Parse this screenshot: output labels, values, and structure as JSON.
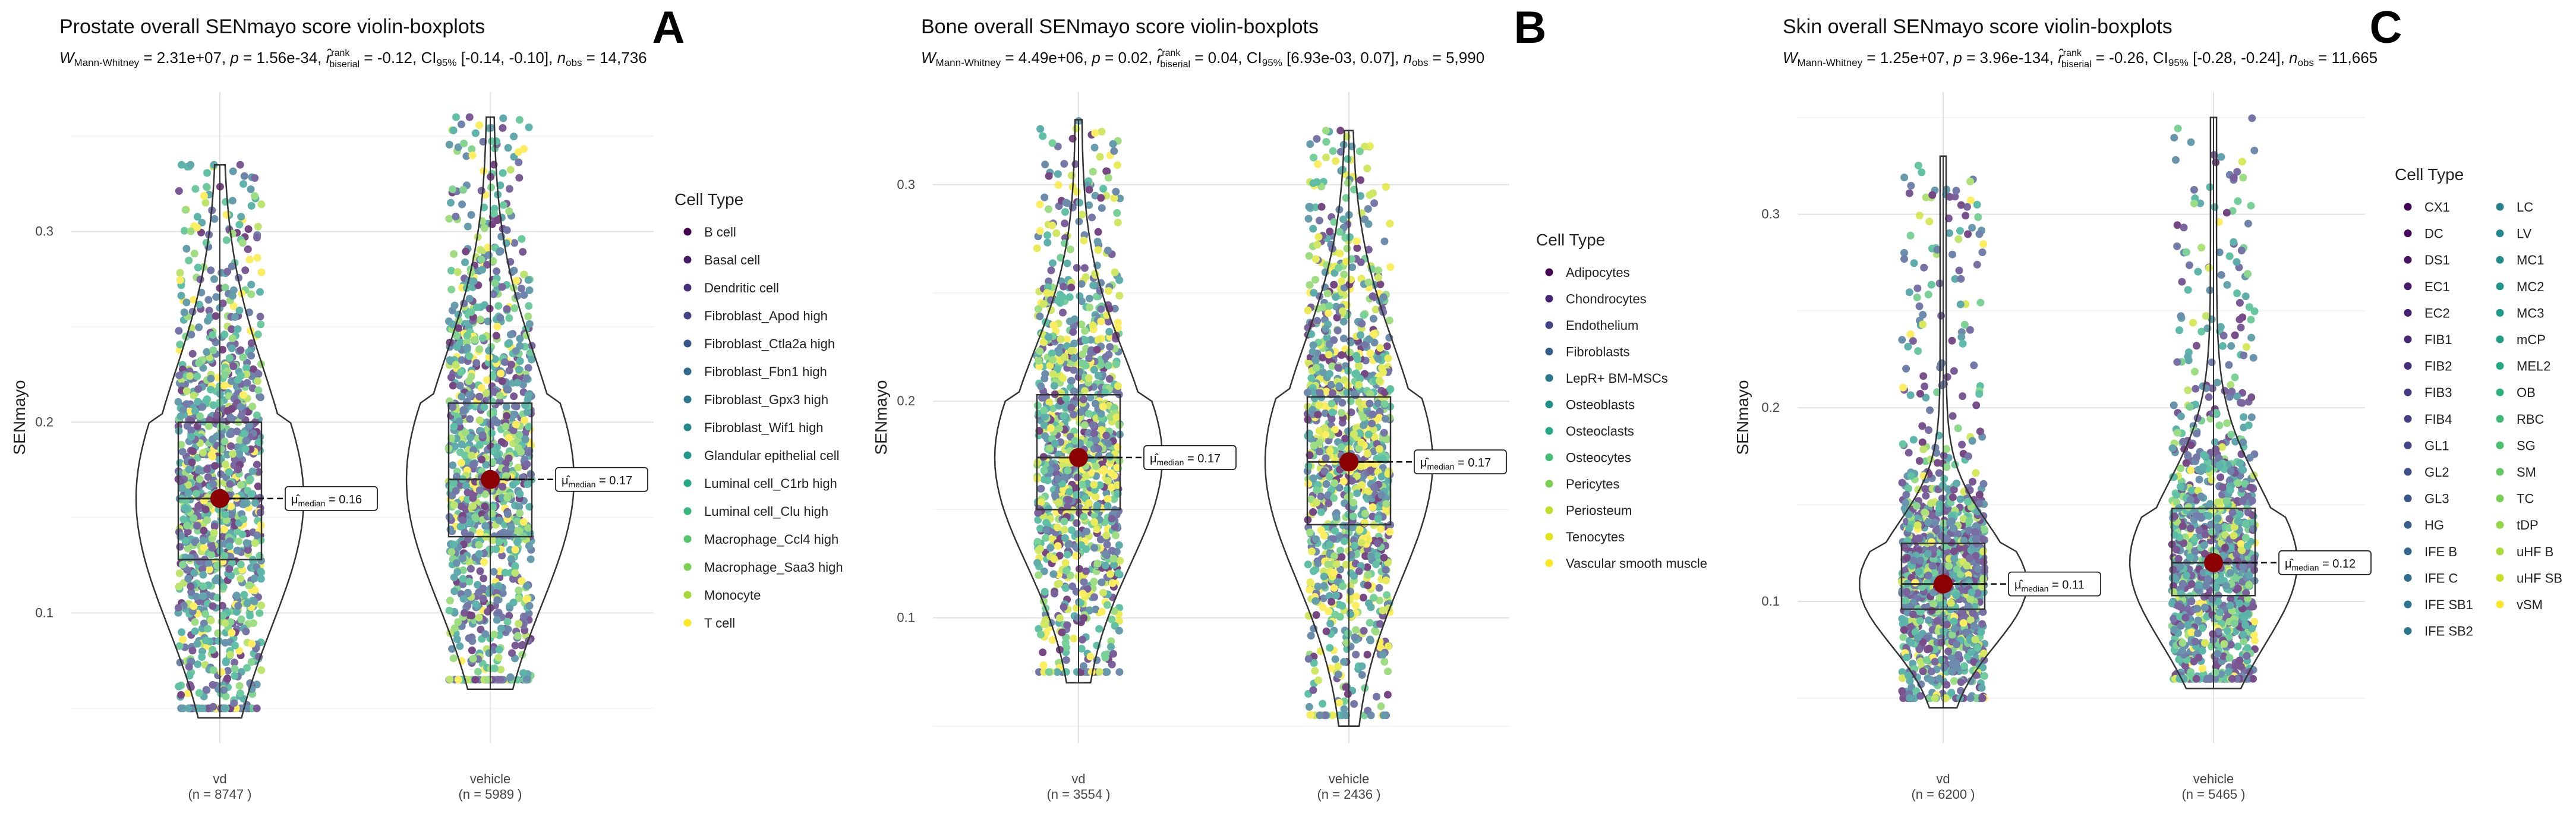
{
  "chart_data": [
    {
      "type": "violin-boxplot",
      "panel_letter": "A",
      "title": "Prostate overall SENmayo score violin-boxplots",
      "stats": {
        "W": "2.31e+07",
        "p": "1.56e-34",
        "r": "-0.12",
        "ci": "[-0.14, -0.10]",
        "n_obs": "14,736"
      },
      "subtitle_parts": {
        "w_main": "W",
        "w_sub": "Mann-Whitney",
        "w_val": " = 2.31e+07, ",
        "p_text": "p",
        "p_val": " = 1.56e-34, ",
        "r_main": "r̂",
        "r_sup": "rank",
        "r_sub": "biserial",
        "r_val": " = -0.12, ",
        "ci_main": "CI",
        "ci_sub": "95%",
        "ci_val": " [-0.14, -0.10], ",
        "n_main": "n",
        "n_sub": "obs",
        "n_val": " = 14,736"
      },
      "ylabel": "SENmayo",
      "ylim": [
        0.035,
        0.37
      ],
      "yticks": [
        0.1,
        0.2,
        0.3
      ],
      "ytick_labels": [
        "0.1",
        "0.2",
        "0.3"
      ],
      "categories": [
        {
          "name": "vd",
          "n_label": "(n = 8747 )",
          "median": 0.16,
          "q1": 0.128,
          "q3": 0.2,
          "min": 0.045,
          "max": 0.335,
          "median_label": "μ̂median = 0.16",
          "median_text_main": "μ̂",
          "median_text_sub": "median",
          "median_text_val": " = 0.16"
        },
        {
          "name": "vehicle",
          "n_label": "(n = 5989 )",
          "median": 0.17,
          "q1": 0.14,
          "q3": 0.21,
          "min": 0.06,
          "max": 0.36,
          "median_label": "μ̂median = 0.17",
          "median_text_main": "μ̂",
          "median_text_sub": "median",
          "median_text_val": " = 0.17"
        }
      ],
      "legend_title": "Cell Type",
      "legend": [
        "B cell",
        "Basal cell",
        "Dendritic cell",
        "Fibroblast_Apod high",
        "Fibroblast_Ctla2a high",
        "Fibroblast_Fbn1 high",
        "Fibroblast_Gpx3 high",
        "Fibroblast_Wif1 high",
        "Glandular epithelial cell",
        "Luminal cell_C1rb high",
        "Luminal cell_Clu high",
        "Macrophage_Ccl4 high",
        "Macrophage_Saa3 high",
        "Monocyte",
        "T cell"
      ],
      "legend_colors": [
        "#440154",
        "#481a6c",
        "#472f7d",
        "#414487",
        "#39568c",
        "#31688e",
        "#2a788e",
        "#23888e",
        "#1f988b",
        "#22a884",
        "#35b779",
        "#54c568",
        "#7ad151",
        "#a5db36",
        "#fde725"
      ]
    },
    {
      "type": "violin-boxplot",
      "panel_letter": "B",
      "title": "Bone overall SENmayo score violin-boxplots",
      "stats": {
        "W": "4.49e+06",
        "p": "0.02",
        "r": "0.04",
        "ci": "[6.93e-03, 0.07]",
        "n_obs": "5,990"
      },
      "subtitle_parts": {
        "w_main": "W",
        "w_sub": "Mann-Whitney",
        "w_val": " = 4.49e+06, ",
        "p_text": "p",
        "p_val": " = 0.02, ",
        "r_main": "r̂",
        "r_sup": "rank",
        "r_sub": "biserial",
        "r_val": " = 0.04, ",
        "ci_main": "CI",
        "ci_sub": "95%",
        "ci_val": " [6.93e-03, 0.07], ",
        "n_main": "n",
        "n_sub": "obs",
        "n_val": " = 5,990"
      },
      "ylabel": "SENmayo",
      "ylim": [
        0.045,
        0.34
      ],
      "yticks": [
        0.1,
        0.2,
        0.3
      ],
      "ytick_labels": [
        "0.1",
        "0.2",
        "0.3"
      ],
      "categories": [
        {
          "name": "vd",
          "n_label": "(n = 3554 )",
          "median": 0.174,
          "q1": 0.15,
          "q3": 0.203,
          "min": 0.07,
          "max": 0.33,
          "median_label": "μ̂median = 0.17",
          "median_text_main": "μ̂",
          "median_text_sub": "median",
          "median_text_val": " = 0.17"
        },
        {
          "name": "vehicle",
          "n_label": "(n = 2436 )",
          "median": 0.172,
          "q1": 0.143,
          "q3": 0.202,
          "min": 0.05,
          "max": 0.325,
          "median_label": "μ̂median = 0.17",
          "median_text_main": "μ̂",
          "median_text_sub": "median",
          "median_text_val": " = 0.17"
        }
      ],
      "legend_title": "Cell Type",
      "legend": [
        "Adipocytes",
        "Chondrocytes",
        "Endothelium",
        "Fibroblasts",
        "LepR+ BM-MSCs",
        "Osteoblasts",
        "Osteoclasts",
        "Osteocytes",
        "Pericytes",
        "Periosteum",
        "Tenocytes",
        "Vascular smooth muscle"
      ],
      "legend_colors": [
        "#440154",
        "#482576",
        "#414487",
        "#35608d",
        "#2a788e",
        "#21918c",
        "#22a884",
        "#43bf71",
        "#7ad151",
        "#bddf26",
        "#e3e418",
        "#fde725"
      ]
    },
    {
      "type": "violin-boxplot",
      "panel_letter": "C",
      "title": "Skin overall SENmayo score violin-boxplots",
      "stats": {
        "W": "1.25e+07",
        "p": "3.96e-134",
        "r": "-0.26",
        "ci": "[-0.28, -0.24]",
        "n_obs": "11,665"
      },
      "subtitle_parts": {
        "w_main": "W",
        "w_sub": "Mann-Whitney",
        "w_val": " = 1.25e+07, ",
        "p_text": "p",
        "p_val": " = 3.96e-134, ",
        "r_main": "r̂",
        "r_sup": "rank",
        "r_sub": "biserial",
        "r_val": " = -0.26, ",
        "ci_main": "CI",
        "ci_sub": "95%",
        "ci_val": " [-0.28, -0.24], ",
        "n_main": "n",
        "n_sub": "obs",
        "n_val": " = 11,665"
      },
      "ylabel": "SENmayo",
      "ylim": [
        0.03,
        0.36
      ],
      "yticks": [
        0.1,
        0.2,
        0.3
      ],
      "ytick_labels": [
        "0.1",
        "0.2",
        "0.3"
      ],
      "categories": [
        {
          "name": "vd",
          "n_label": "(n = 6200 )",
          "median": 0.109,
          "q1": 0.096,
          "q3": 0.13,
          "min": 0.045,
          "max": 0.33,
          "median_label": "μ̂median = 0.11",
          "median_text_main": "μ̂",
          "median_text_sub": "median",
          "median_text_val": " = 0.11"
        },
        {
          "name": "vehicle",
          "n_label": "(n = 5465 )",
          "median": 0.12,
          "q1": 0.103,
          "q3": 0.148,
          "min": 0.055,
          "max": 0.35,
          "median_label": "μ̂median = 0.12",
          "median_text_main": "μ̂",
          "median_text_sub": "median",
          "median_text_val": " = 0.12"
        }
      ],
      "legend_title": "Cell Type",
      "legend": [
        "CX1",
        "DC",
        "DS1",
        "EC1",
        "EC2",
        "FIB1",
        "FIB2",
        "FIB3",
        "FIB4",
        "GL1",
        "GL2",
        "GL3",
        "HG",
        "IFE B",
        "IFE C",
        "IFE SB1",
        "IFE SB2",
        "LC",
        "LV",
        "MC1",
        "MC2",
        "MC3",
        "mCP",
        "MEL2",
        "OB",
        "RBC",
        "SG",
        "SM",
        "TC",
        "tDP",
        "uHF B",
        "uHF SB",
        "vSM"
      ],
      "legend_colors": [
        "#440154",
        "#46085c",
        "#471164",
        "#48186a",
        "#482071",
        "#482777",
        "#472e7c",
        "#453781",
        "#433e85",
        "#404588",
        "#3c4f8a",
        "#39568c",
        "#355f8d",
        "#32658e",
        "#2f6c8e",
        "#2c738e",
        "#2a788e",
        "#27808e",
        "#24868e",
        "#228d8d",
        "#1f958b",
        "#1f9a8a",
        "#1fa188",
        "#24aa83",
        "#2db27d",
        "#3bbb75",
        "#4ac16d",
        "#60ca60",
        "#75d054",
        "#8fd744",
        "#a8db34",
        "#c8e020",
        "#fde725"
      ]
    }
  ]
}
